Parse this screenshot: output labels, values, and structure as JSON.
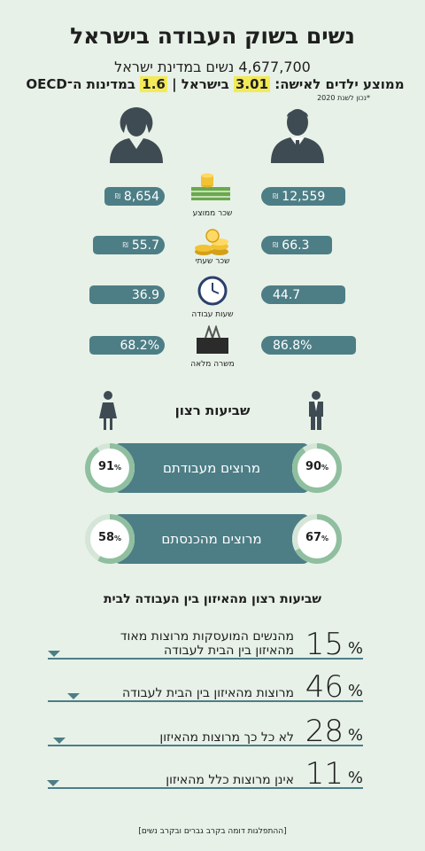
{
  "header": {
    "title": "נשים בשוק העבודה בישראל",
    "population": "4,677,700 נשים במדינת ישראל",
    "children_prefix": "ממוצע ילדים לאישה:",
    "israel_value": "3.01",
    "israel_label": "בישראל |",
    "oecd_value": "1.6",
    "oecd_label": "במדינות ה־OECD",
    "note": "*נכון לשנת 2020"
  },
  "stats": [
    {
      "label": "שכר ממוצע",
      "women": "8,654",
      "men": "12,559",
      "currency": "₪",
      "icon": "money-stack-icon"
    },
    {
      "label": "שכר שעתי",
      "women": "55.7",
      "men": "66.3",
      "currency": "₪",
      "icon": "coins-icon"
    },
    {
      "label": "שעות עבודה",
      "women": "36.9",
      "men": "44.7",
      "currency": "",
      "icon": "clock-icon"
    },
    {
      "label": "משרה מלאה",
      "women": "68.2%",
      "men": "86.8%",
      "currency": "",
      "icon": "binder-clip-icon"
    }
  ],
  "satisfaction": {
    "title": "שביעות רצון",
    "rows": [
      {
        "label": "מרוצים מעבודתם",
        "women": "91",
        "men": "90"
      },
      {
        "label": "מרוצים מהכנסתם",
        "women": "58",
        "men": "67"
      }
    ],
    "pct_sign": "%"
  },
  "balance": {
    "title": "שביעות רצון מהאיזון בין העבודה לבית",
    "pct_sign": "%",
    "rows": [
      {
        "value": "15",
        "text": "מהנשים המועסקות מרוצות מאוד מהאיזון בין הבית לעבודה"
      },
      {
        "value": "46",
        "text": "מרוצות מהאיזון בין הבית לעבודה"
      },
      {
        "value": "28",
        "text": "לא כל כך מרוצות מהאיזון"
      },
      {
        "value": "11",
        "text": "אינן מרוצות כלל מהאיזון"
      }
    ]
  },
  "footnote": "[ההתפלגות דומה בקרב גברים ובקרב נשים]",
  "chart_data": [
    {
      "type": "bar",
      "title": "",
      "categories": [
        "שכר ממוצע",
        "שכר שעתי",
        "שעות עבודה",
        "משרה מלאה"
      ],
      "series": [
        {
          "name": "נשים",
          "values": [
            8654,
            55.7,
            36.9,
            68.2
          ]
        },
        {
          "name": "גברים",
          "values": [
            12559,
            66.3,
            44.7,
            86.8
          ]
        }
      ]
    },
    {
      "type": "pie",
      "title": "שביעות רצון",
      "categories": [
        "מרוצים מעבודתם",
        "מרוצים מהכנסתם"
      ],
      "series": [
        {
          "name": "נשים",
          "values": [
            91,
            58
          ]
        },
        {
          "name": "גברים",
          "values": [
            90,
            67
          ]
        }
      ]
    },
    {
      "type": "bar",
      "title": "שביעות רצון מהאיזון בין העבודה לבית",
      "categories": [
        "מהנשים המועסקות מרוצות מאוד מהאיזון בין הבית לעבודה",
        "מרוצות מהאיזון בין הבית לעבודה",
        "לא כל כך מרוצות מהאיזון",
        "אינן מרוצות כלל מהאיזון"
      ],
      "values": [
        15,
        46,
        28,
        11
      ]
    }
  ],
  "colors": {
    "background": "#e7f1e8",
    "bar": "#4d7e86",
    "ring": "#8fbf9f",
    "ring_track": "#d5e6d8",
    "highlight": "#f3ea57",
    "person": "#3e4b52"
  }
}
